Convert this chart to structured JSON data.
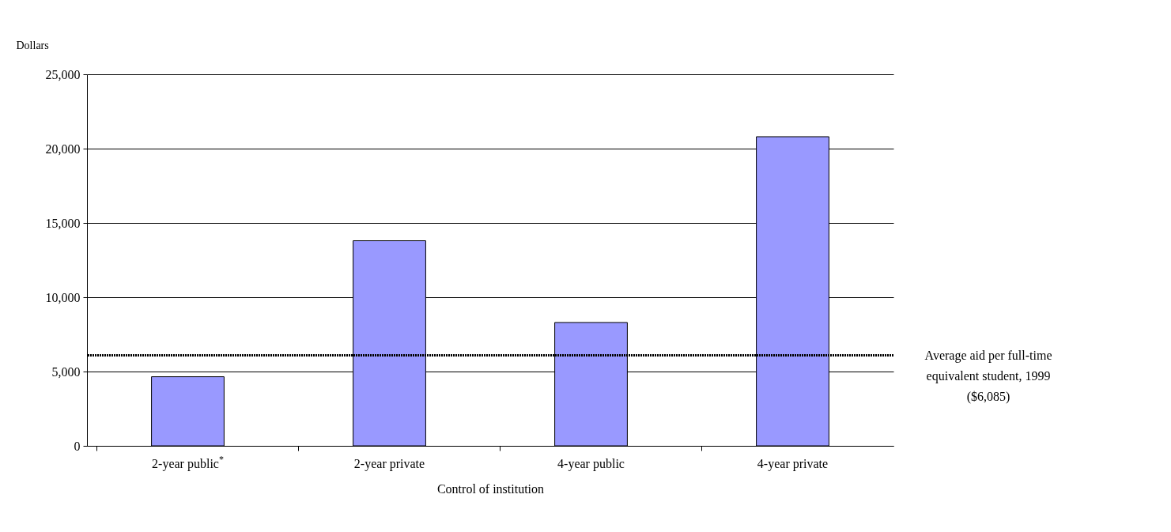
{
  "chart_data": {
    "type": "bar",
    "xlabel": "Control of institution",
    "ylabel": "Dollars",
    "categories": [
      "2-year public$^{*}$",
      "2-year private",
      "4-year public",
      "4-year private"
    ],
    "values": [
      4650,
      13800,
      8300,
      20800
    ],
    "color": "#9999ff",
    "ylim": [
      0,
      25000
    ],
    "yticks": [
      0,
      {
        "value": 5000,
        "label": "5,000"
      },
      {
        "value": 10000,
        "label": "10,000"
      },
      {
        "value": 15000,
        "label": "15,000"
      },
      {
        "value": 20000,
        "label": "20,000"
      },
      {
        "value": 25000,
        "label": "25,000"
      }
    ],
    "grid": "y",
    "ref_lines": [
      {
        "axis": "y",
        "value": 6085,
        "label": "Average aid per full-time\nequivalent student, 1999\n($6,085)",
        "line_style": "dotted",
        "color": "#000000"
      }
    ]
  }
}
